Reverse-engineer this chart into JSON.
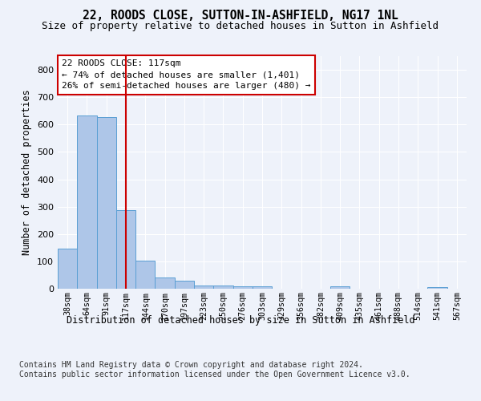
{
  "title1": "22, ROODS CLOSE, SUTTON-IN-ASHFIELD, NG17 1NL",
  "title2": "Size of property relative to detached houses in Sutton in Ashfield",
  "xlabel": "Distribution of detached houses by size in Sutton in Ashfield",
  "ylabel": "Number of detached properties",
  "categories": [
    "38sqm",
    "64sqm",
    "91sqm",
    "117sqm",
    "144sqm",
    "170sqm",
    "197sqm",
    "223sqm",
    "250sqm",
    "276sqm",
    "303sqm",
    "329sqm",
    "356sqm",
    "382sqm",
    "409sqm",
    "435sqm",
    "461sqm",
    "488sqm",
    "514sqm",
    "541sqm",
    "567sqm"
  ],
  "values": [
    148,
    633,
    627,
    287,
    103,
    42,
    29,
    12,
    12,
    10,
    9,
    0,
    0,
    0,
    8,
    0,
    0,
    0,
    0,
    7,
    0
  ],
  "bar_color": "#aec6e8",
  "bar_edge_color": "#5a9fd4",
  "vline_x": 3,
  "vline_color": "#cc0000",
  "annotation_line1": "22 ROODS CLOSE: 117sqm",
  "annotation_line2": "← 74% of detached houses are smaller (1,401)",
  "annotation_line3": "26% of semi-detached houses are larger (480) →",
  "ylim": [
    0,
    850
  ],
  "yticks": [
    0,
    100,
    200,
    300,
    400,
    500,
    600,
    700,
    800
  ],
  "background_color": "#eef2fa",
  "grid_color": "#ffffff",
  "footer_text": "Contains HM Land Registry data © Crown copyright and database right 2024.\nContains public sector information licensed under the Open Government Licence v3.0.",
  "annotation_fontsize": 8.0,
  "title1_fontsize": 10.5,
  "title2_fontsize": 9.0,
  "xlabel_fontsize": 8.5,
  "ylabel_fontsize": 8.5,
  "footer_fontsize": 7.0
}
